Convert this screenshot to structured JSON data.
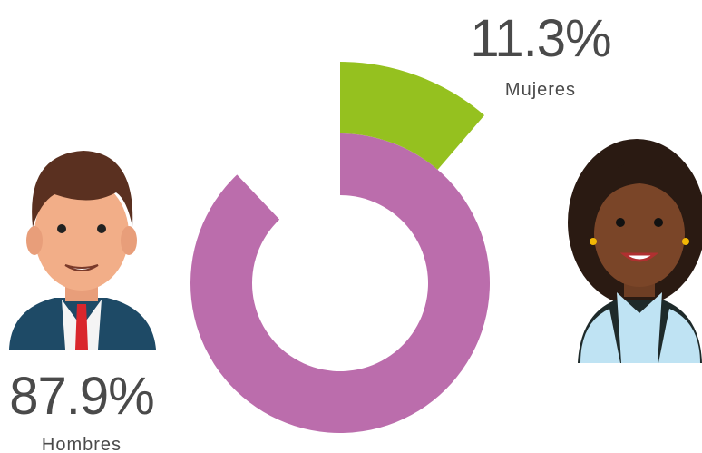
{
  "chart_data": {
    "type": "donut",
    "categories": [
      "Hombres",
      "Mujeres"
    ],
    "values": [
      87.9,
      11.3
    ],
    "value_labels": [
      "87.9%",
      "11.3%"
    ],
    "colors": [
      "#bb6dac",
      "#95c11f"
    ]
  }
}
